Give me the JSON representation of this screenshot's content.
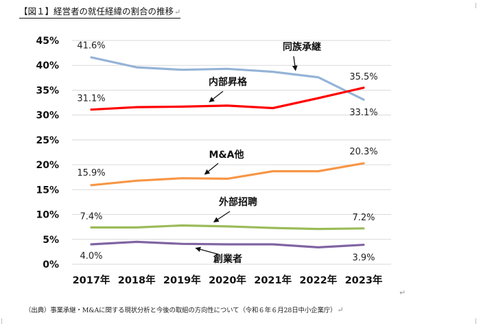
{
  "document": {
    "title": "【図１】経営者の就任経緯の割合の推移",
    "source_note": "（出典）事業承継・M&Aに関する現状分析と今後の取組の方向性について（令和６年６月28日中小企業庁）",
    "paragraph_mark": "↵"
  },
  "chart_data": {
    "type": "line",
    "title": "",
    "xlabel": "",
    "ylabel": "",
    "categories": [
      "2017年",
      "2018年",
      "2019年",
      "2020年",
      "2021年",
      "2022年",
      "2023年"
    ],
    "ylim": [
      0,
      45
    ],
    "ytick_labels": [
      "0%",
      "5%",
      "10%",
      "15%",
      "20%",
      "25%",
      "30%",
      "35%",
      "40%",
      "45%"
    ],
    "grid": true,
    "legend": "none (series labeled directly with arrows)",
    "series": [
      {
        "name": "同族承継",
        "color": "#95B3D7",
        "values": [
          41.6,
          39.6,
          39.1,
          39.3,
          38.7,
          37.6,
          33.1
        ],
        "start_label": "41.6%",
        "end_label": "33.1%"
      },
      {
        "name": "内部昇格",
        "color": "#FF0000",
        "values": [
          31.1,
          31.6,
          31.7,
          31.9,
          31.4,
          33.4,
          35.5
        ],
        "start_label": "31.1%",
        "end_label": "35.5%"
      },
      {
        "name": "M&A他",
        "color": "#F79646",
        "values": [
          15.9,
          16.8,
          17.3,
          17.2,
          18.7,
          18.7,
          20.3
        ],
        "start_label": "15.9%",
        "end_label": "20.3%"
      },
      {
        "name": "外部招聘",
        "color": "#9BBB59",
        "values": [
          7.4,
          7.4,
          7.8,
          7.6,
          7.3,
          7.1,
          7.2
        ],
        "start_label": "7.4%",
        "end_label": "7.2%"
      },
      {
        "name": "創業者",
        "color": "#8064A2",
        "values": [
          4.0,
          4.5,
          4.1,
          4.0,
          4.0,
          3.4,
          3.9
        ],
        "start_label": "4.0%",
        "end_label": "3.9%"
      }
    ]
  }
}
